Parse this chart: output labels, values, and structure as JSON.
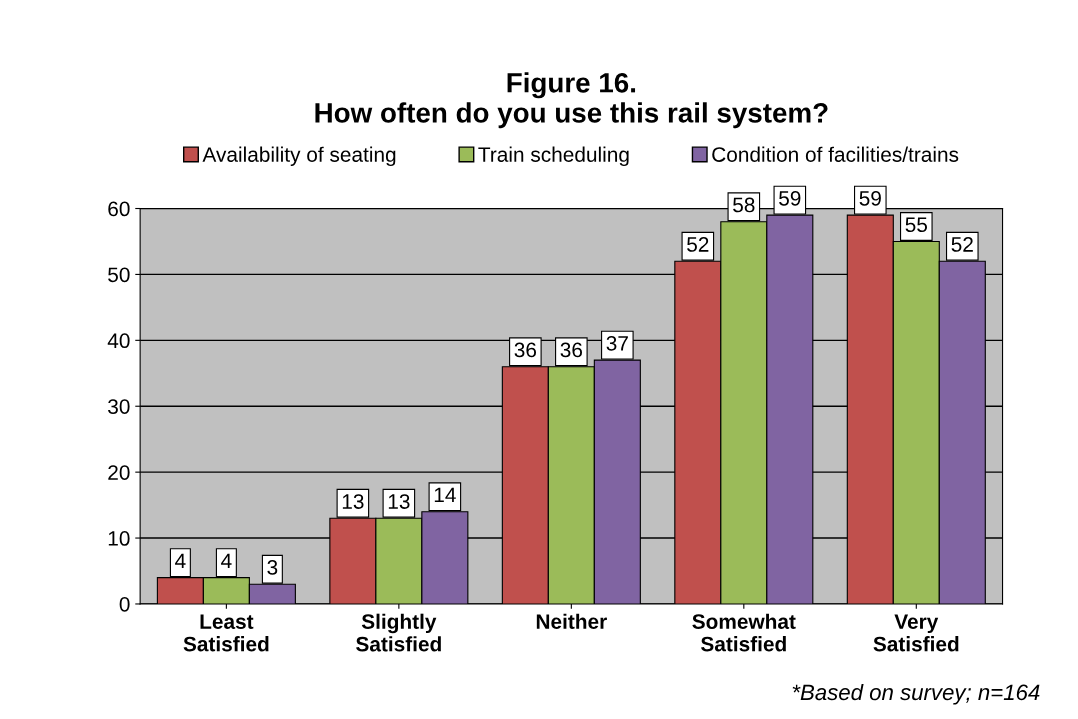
{
  "chart_data": {
    "type": "bar",
    "title": "Figure 16.\nHow often do you use this rail system?",
    "categories": [
      "Least\nSatisfied",
      "Slightly\nSatisfied",
      "Neither",
      "Somewhat\nSatisfied",
      "Very\nSatisfied"
    ],
    "series": [
      {
        "name": "Availability of seating",
        "color": "#c0504d",
        "values": [
          4,
          13,
          36,
          52,
          59
        ]
      },
      {
        "name": "Train scheduling",
        "color": "#9bbb59",
        "values": [
          4,
          13,
          36,
          58,
          55
        ]
      },
      {
        "name": "Condition of facilities/trains",
        "color": "#8064a2",
        "values": [
          3,
          14,
          37,
          59,
          52
        ]
      }
    ],
    "ylim": [
      0,
      60
    ],
    "yticks": [
      0,
      10,
      20,
      30,
      40,
      50,
      60
    ],
    "grid": "y",
    "legend": "top",
    "data_labels": true,
    "annotations": [
      "*Based on survey; n=164"
    ]
  }
}
